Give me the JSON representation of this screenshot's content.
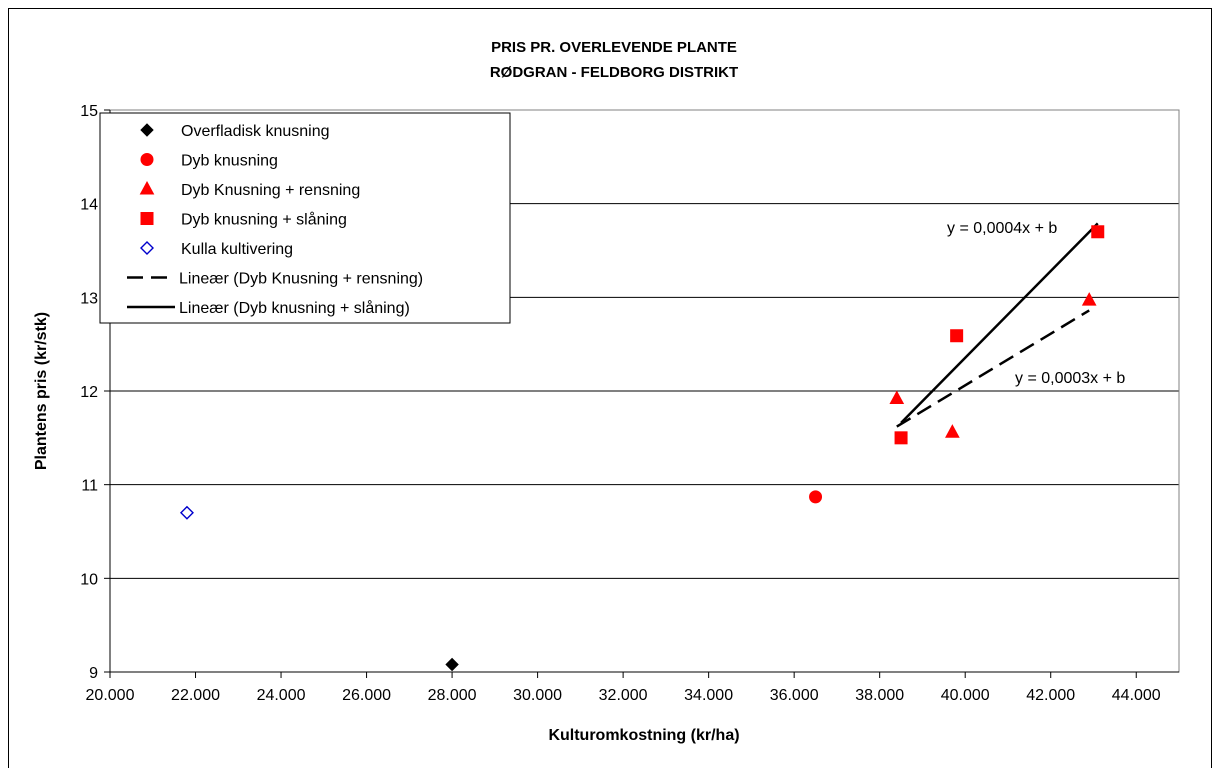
{
  "chart_data": {
    "type": "scatter",
    "title": "PRIS PR. OVERLEVENDE PLANTE",
    "subtitle": "RØDGRAN - FELDBORG DISTRIKT",
    "xlabel": "Kulturomkostning (kr/ha)",
    "ylabel": "Plantens pris (kr/stk)",
    "xlim": [
      20000,
      45000
    ],
    "ylim": [
      9,
      15
    ],
    "x_ticks": [
      20000,
      22000,
      24000,
      26000,
      28000,
      30000,
      32000,
      34000,
      36000,
      38000,
      40000,
      42000,
      44000
    ],
    "x_tick_labels": [
      "20.000",
      "22.000",
      "24.000",
      "26.000",
      "28.000",
      "30.000",
      "32.000",
      "34.000",
      "36.000",
      "38.000",
      "40.000",
      "42.000",
      "44.000"
    ],
    "y_ticks": [
      9,
      10,
      11,
      12,
      13,
      14,
      15
    ],
    "y_tick_labels": [
      "9",
      "10",
      "11",
      "12",
      "13",
      "14",
      "15"
    ],
    "grid": "horizontal",
    "legend_position": "top-left",
    "series": [
      {
        "name": "Overfladisk knusning",
        "marker": "diamond",
        "color": "#000000",
        "filled": true,
        "points": [
          [
            28000,
            9.08
          ]
        ]
      },
      {
        "name": "Dyb knusning",
        "marker": "circle",
        "color": "#ff0000",
        "filled": true,
        "points": [
          [
            36500,
            10.87
          ]
        ]
      },
      {
        "name": "Dyb Knusning + rensning",
        "marker": "triangle",
        "color": "#ff0000",
        "filled": true,
        "points": [
          [
            38400,
            11.92
          ],
          [
            39700,
            11.56
          ],
          [
            42900,
            12.97
          ]
        ]
      },
      {
        "name": "Dyb knusning + slåning",
        "marker": "square",
        "color": "#ff0000",
        "filled": true,
        "points": [
          [
            38500,
            11.5
          ],
          [
            39800,
            12.59
          ],
          [
            43100,
            13.7
          ]
        ]
      },
      {
        "name": "Kulla kultivering",
        "marker": "diamond",
        "color": "#0000cc",
        "filled": false,
        "points": [
          [
            21800,
            10.7
          ]
        ]
      }
    ],
    "trendlines": [
      {
        "name": "Lineær (Dyb Knusning + rensning)",
        "style": "dashed",
        "color": "#000000",
        "points": [
          [
            38400,
            11.62
          ],
          [
            42900,
            12.86
          ]
        ],
        "equation": "y = 0,0003x + b"
      },
      {
        "name": "Lineær (Dyb knusning + slåning)",
        "style": "solid",
        "color": "#000000",
        "points": [
          [
            38500,
            11.66
          ],
          [
            43100,
            13.79
          ]
        ],
        "equation": "y = 0,0004x + b"
      }
    ]
  }
}
